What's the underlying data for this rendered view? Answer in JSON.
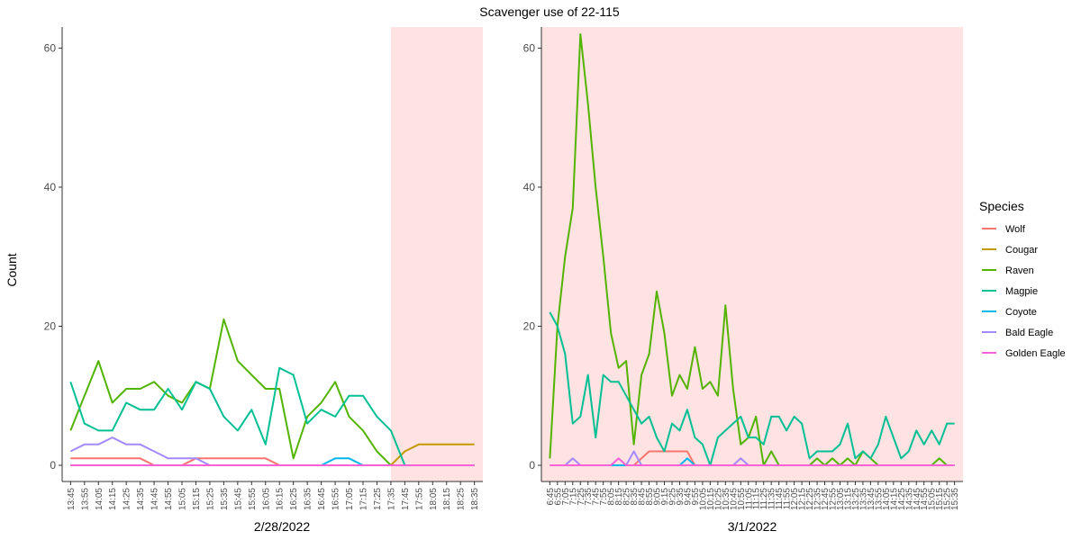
{
  "title": "Scavenger use of 22-115",
  "ylabel": "Count",
  "legend": {
    "title": "Species",
    "entries": [
      {
        "name": "Wolf",
        "color": "#F8766D"
      },
      {
        "name": "Cougar",
        "color": "#C49A00"
      },
      {
        "name": "Raven",
        "color": "#53B400"
      },
      {
        "name": "Magpie",
        "color": "#00C094"
      },
      {
        "name": "Coyote",
        "color": "#00B6EB"
      },
      {
        "name": "Bald Eagle",
        "color": "#A58AFF"
      },
      {
        "name": "Golden Eagle",
        "color": "#FB61D7"
      }
    ]
  },
  "colors": {
    "shade": "#FFE2E2",
    "axis": "#333333"
  },
  "chart_data": [
    {
      "type": "line",
      "xlabel": "2/28/2022",
      "ylim": [
        0,
        62
      ],
      "yticks": [
        0,
        20,
        40,
        60
      ],
      "night_shade_from": "17:35",
      "categories": [
        "13:45",
        "13:55",
        "14:05",
        "14:15",
        "14:25",
        "14:35",
        "14:45",
        "14:55",
        "15:05",
        "15:15",
        "15:25",
        "15:35",
        "15:45",
        "15:55",
        "16:05",
        "16:15",
        "16:25",
        "16:35",
        "16:45",
        "16:55",
        "17:05",
        "17:15",
        "17:25",
        "17:35",
        "17:45",
        "17:55",
        "18:05",
        "18:15",
        "18:25",
        "18:35"
      ],
      "series": [
        {
          "name": "Wolf",
          "values": [
            1,
            1,
            1,
            1,
            1,
            1,
            0,
            0,
            0,
            1,
            1,
            1,
            1,
            1,
            1,
            0,
            0,
            0,
            0,
            0,
            0,
            0,
            0,
            0,
            0,
            0,
            0,
            0,
            0,
            0
          ]
        },
        {
          "name": "Cougar",
          "values": [
            0,
            0,
            0,
            0,
            0,
            0,
            0,
            0,
            0,
            0,
            0,
            0,
            0,
            0,
            0,
            0,
            0,
            0,
            0,
            0,
            0,
            0,
            0,
            0,
            2,
            3,
            3,
            3,
            3,
            3
          ]
        },
        {
          "name": "Raven",
          "values": [
            5,
            10,
            15,
            9,
            11,
            11,
            12,
            10,
            9,
            12,
            11,
            21,
            15,
            13,
            11,
            11,
            1,
            7,
            9,
            12,
            7,
            5,
            2,
            0,
            0,
            0,
            0,
            0,
            0,
            0
          ]
        },
        {
          "name": "Magpie",
          "values": [
            12,
            6,
            5,
            5,
            9,
            8,
            8,
            11,
            8,
            12,
            11,
            7,
            5,
            8,
            3,
            14,
            13,
            6,
            8,
            7,
            10,
            10,
            7,
            5,
            0,
            0,
            0,
            0,
            0,
            0
          ]
        },
        {
          "name": "Coyote",
          "values": [
            0,
            0,
            0,
            0,
            0,
            0,
            0,
            0,
            0,
            0,
            0,
            0,
            0,
            0,
            0,
            0,
            0,
            0,
            0,
            1,
            1,
            0,
            0,
            0,
            0,
            0,
            0,
            0,
            0,
            0
          ]
        },
        {
          "name": "Bald Eagle",
          "values": [
            2,
            3,
            3,
            4,
            3,
            3,
            2,
            1,
            1,
            1,
            0,
            0,
            0,
            0,
            0,
            0,
            0,
            0,
            0,
            0,
            0,
            0,
            0,
            0,
            0,
            0,
            0,
            0,
            0,
            0
          ]
        },
        {
          "name": "Golden Eagle",
          "values": [
            0,
            0,
            0,
            0,
            0,
            0,
            0,
            0,
            0,
            0,
            0,
            0,
            0,
            0,
            0,
            0,
            0,
            0,
            0,
            0,
            0,
            0,
            0,
            0,
            0,
            0,
            0,
            0,
            0,
            0
          ]
        }
      ]
    },
    {
      "type": "line",
      "xlabel": "3/1/2022",
      "ylim": [
        0,
        62
      ],
      "yticks": [
        0,
        20,
        40,
        60
      ],
      "night_shade_from": "6:45",
      "categories": [
        "6:45",
        "6:55",
        "7:05",
        "7:15",
        "7:25",
        "7:35",
        "7:45",
        "7:55",
        "8:05",
        "8:15",
        "8:25",
        "8:35",
        "8:45",
        "8:55",
        "9:05",
        "9:15",
        "9:25",
        "9:35",
        "9:45",
        "9:55",
        "10:05",
        "10:15",
        "10:25",
        "10:35",
        "10:45",
        "10:55",
        "11:05",
        "11:15",
        "11:25",
        "11:35",
        "11:45",
        "11:55",
        "12:05",
        "12:15",
        "12:25",
        "12:35",
        "12:45",
        "12:55",
        "13:05",
        "13:15",
        "13:25",
        "13:35",
        "13:45",
        "13:55",
        "14:05",
        "14:15",
        "14:25",
        "14:35",
        "14:45",
        "14:55",
        "15:05",
        "15:15",
        "15:25",
        "15:35"
      ],
      "series": [
        {
          "name": "Wolf",
          "values": [
            0,
            0,
            0,
            0,
            0,
            0,
            0,
            0,
            0,
            0,
            0,
            0,
            1,
            2,
            2,
            2,
            2,
            2,
            2,
            0,
            0,
            0,
            0,
            0,
            0,
            0,
            0,
            0,
            0,
            0,
            0,
            0,
            0,
            0,
            0,
            0,
            0,
            0,
            0,
            0,
            0,
            0,
            0,
            0,
            0,
            0,
            0,
            0,
            0,
            0,
            0,
            0,
            0,
            0
          ]
        },
        {
          "name": "Cougar",
          "values": [
            0,
            0,
            0,
            0,
            0,
            0,
            0,
            0,
            0,
            0,
            0,
            0,
            0,
            0,
            0,
            0,
            0,
            0,
            0,
            0,
            0,
            0,
            0,
            0,
            0,
            0,
            0,
            0,
            0,
            0,
            0,
            0,
            0,
            0,
            0,
            0,
            0,
            0,
            0,
            0,
            0,
            0,
            0,
            0,
            0,
            0,
            0,
            0,
            0,
            0,
            0,
            0,
            0,
            0
          ]
        },
        {
          "name": "Raven",
          "values": [
            1,
            20,
            30,
            37,
            62,
            52,
            40,
            30,
            19,
            14,
            15,
            3,
            13,
            16,
            25,
            19,
            10,
            13,
            11,
            17,
            11,
            12,
            10,
            23,
            11,
            3,
            4,
            7,
            0,
            2,
            0,
            0,
            0,
            0,
            0,
            1,
            0,
            1,
            0,
            1,
            0,
            2,
            1,
            0,
            0,
            0,
            0,
            0,
            0,
            0,
            0,
            1,
            0,
            0
          ]
        },
        {
          "name": "Magpie",
          "values": [
            22,
            20,
            16,
            6,
            7,
            13,
            4,
            13,
            12,
            12,
            10,
            8,
            6,
            7,
            4,
            2,
            6,
            5,
            8,
            4,
            3,
            0,
            4,
            5,
            6,
            7,
            4,
            4,
            3,
            7,
            7,
            5,
            7,
            6,
            1,
            2,
            2,
            2,
            3,
            6,
            1,
            2,
            1,
            3,
            7,
            4,
            1,
            2,
            5,
            3,
            5,
            3,
            6,
            6
          ]
        },
        {
          "name": "Coyote",
          "values": [
            0,
            0,
            0,
            0,
            0,
            0,
            0,
            0,
            0,
            0,
            0,
            0,
            0,
            0,
            0,
            0,
            0,
            0,
            1,
            0,
            0,
            0,
            0,
            0,
            0,
            0,
            0,
            0,
            0,
            0,
            0,
            0,
            0,
            0,
            0,
            0,
            0,
            0,
            0,
            0,
            0,
            0,
            0,
            0,
            0,
            0,
            0,
            0,
            0,
            0,
            0,
            0,
            0,
            0
          ]
        },
        {
          "name": "Bald Eagle",
          "values": [
            0,
            0,
            0,
            1,
            0,
            0,
            0,
            0,
            0,
            1,
            0,
            2,
            0,
            0,
            0,
            0,
            0,
            0,
            0,
            0,
            0,
            0,
            0,
            0,
            0,
            1,
            0,
            0,
            0,
            0,
            0,
            0,
            0,
            0,
            0,
            0,
            0,
            0,
            0,
            0,
            0,
            0,
            0,
            0,
            0,
            0,
            0,
            0,
            0,
            0,
            0,
            0,
            0,
            0
          ]
        },
        {
          "name": "Golden Eagle",
          "values": [
            0,
            0,
            0,
            0,
            0,
            0,
            0,
            0,
            0,
            1,
            0,
            0,
            0,
            0,
            0,
            0,
            0,
            0,
            0,
            0,
            0,
            0,
            0,
            0,
            0,
            0,
            0,
            0,
            0,
            0,
            0,
            0,
            0,
            0,
            0,
            0,
            0,
            0,
            0,
            0,
            0,
            0,
            0,
            0,
            0,
            0,
            0,
            0,
            0,
            0,
            0,
            0,
            0,
            0
          ]
        }
      ]
    }
  ]
}
